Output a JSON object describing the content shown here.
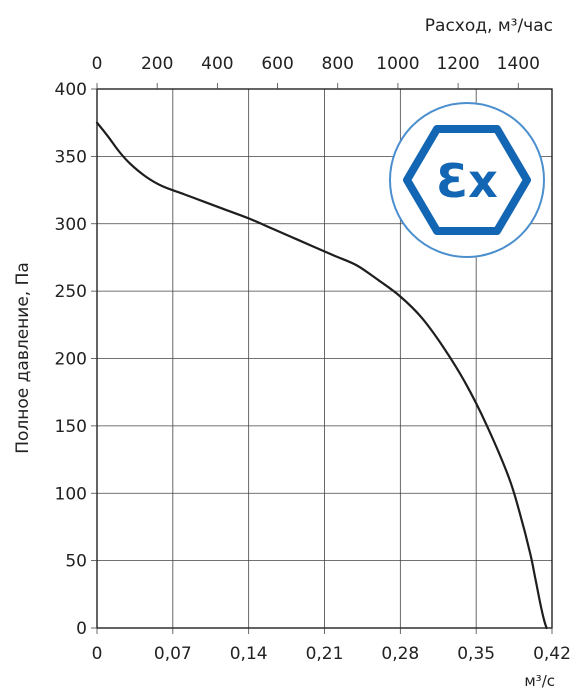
{
  "chart_data": {
    "type": "line",
    "title": "",
    "xlabel": "м³/с",
    "ylabel": "Полное давление, Па",
    "x2label": "Расход, м³/час",
    "xlim": [
      0,
      0.42
    ],
    "ylim": [
      0,
      400
    ],
    "x2lim": [
      0,
      1512
    ],
    "x_ticks": [
      "0",
      "0,07",
      "0,14",
      "0,21",
      "0,28",
      "0,35",
      "0,42"
    ],
    "x_tick_values": [
      0,
      0.07,
      0.14,
      0.21,
      0.28,
      0.35,
      0.42
    ],
    "y_ticks": [
      "0",
      "50",
      "100",
      "150",
      "200",
      "250",
      "300",
      "350",
      "400"
    ],
    "y_tick_values": [
      0,
      50,
      100,
      150,
      200,
      250,
      300,
      350,
      400
    ],
    "x2_ticks": [
      "0",
      "200",
      "400",
      "600",
      "800",
      "1000",
      "1200",
      "1400"
    ],
    "x2_tick_values": [
      0,
      200,
      400,
      600,
      800,
      1000,
      1200,
      1400
    ],
    "grid": true,
    "series": [
      {
        "x": [
          0,
          0.01,
          0.02,
          0.03,
          0.045,
          0.06,
          0.08,
          0.1,
          0.12,
          0.14,
          0.16,
          0.18,
          0.2,
          0.22,
          0.24,
          0.26,
          0.28,
          0.3,
          0.32,
          0.34,
          0.36,
          0.38,
          0.39,
          0.4,
          0.405,
          0.41,
          0.413,
          0.415
        ],
        "y": [
          375,
          365,
          354,
          345,
          335,
          328,
          322,
          316,
          310,
          304,
          297,
          290,
          283,
          276,
          269,
          258,
          246,
          230,
          208,
          182,
          150,
          112,
          86,
          55,
          35,
          15,
          5,
          0
        ]
      }
    ]
  },
  "badge": {
    "text": "Ɛx",
    "ring_color": "#4b8fce",
    "hex_color": "#1366b3"
  }
}
